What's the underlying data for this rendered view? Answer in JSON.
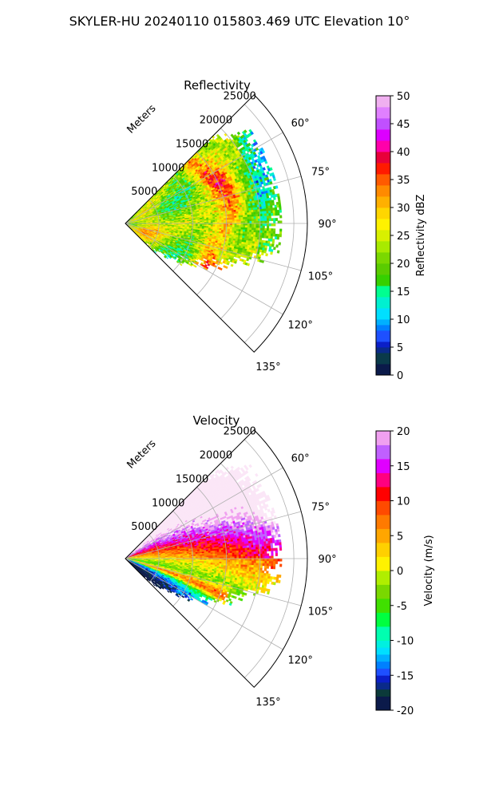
{
  "suptitle": "SKYLER-HU  20240110  015803.469 UTC Elevation 10°",
  "chart_data": [
    {
      "type": "heatmap",
      "projection": "polar-sector",
      "title": "Reflectivity",
      "radial_label": "Meters",
      "azimuth_range_deg": [
        45,
        135
      ],
      "radial_range_m": [
        0,
        27000
      ],
      "radial_ticks": [
        5000,
        10000,
        15000,
        20000,
        25000
      ],
      "azimuth_ticks": [
        "60°",
        "75°",
        "90°",
        "105°",
        "120°",
        "135°"
      ],
      "grid": true,
      "data_extent_m": 23000,
      "colorbar": {
        "label": "Reflectivity dBZ",
        "min": 0,
        "max": 50,
        "ticks": [
          0,
          5,
          10,
          15,
          20,
          25,
          30,
          35,
          40,
          45,
          50
        ],
        "levels": [
          {
            "v": 0,
            "c": "#0b1a4a"
          },
          {
            "v": 2,
            "c": "#0a3a4a"
          },
          {
            "v": 4,
            "c": "#0a2a8a"
          },
          {
            "v": 5,
            "c": "#0b1fc8"
          },
          {
            "v": 6,
            "c": "#1e50ff"
          },
          {
            "v": 8,
            "c": "#0080ff"
          },
          {
            "v": 9,
            "c": "#00b0ff"
          },
          {
            "v": 10,
            "c": "#00dfff"
          },
          {
            "v": 12,
            "c": "#00f0d0"
          },
          {
            "v": 14,
            "c": "#00ff90"
          },
          {
            "v": 16,
            "c": "#36d000"
          },
          {
            "v": 18,
            "c": "#5acc00"
          },
          {
            "v": 20,
            "c": "#7ad800"
          },
          {
            "v": 22,
            "c": "#a8ea00"
          },
          {
            "v": 24,
            "c": "#d8f000"
          },
          {
            "v": 26,
            "c": "#fff200"
          },
          {
            "v": 28,
            "c": "#ffd600"
          },
          {
            "v": 30,
            "c": "#ffb000"
          },
          {
            "v": 32,
            "c": "#ff8a00"
          },
          {
            "v": 34,
            "c": "#ff5a00"
          },
          {
            "v": 36,
            "c": "#ff1a00"
          },
          {
            "v": 38,
            "c": "#e8003a"
          },
          {
            "v": 40,
            "c": "#ff00aa"
          },
          {
            "v": 42,
            "c": "#dd00ff"
          },
          {
            "v": 44,
            "c": "#c050ff"
          },
          {
            "v": 46,
            "c": "#e080ff"
          },
          {
            "v": 48,
            "c": "#f0b0f0"
          },
          {
            "v": 50,
            "c": "#fbe6f7"
          }
        ]
      }
    },
    {
      "type": "heatmap",
      "projection": "polar-sector",
      "title": "Velocity",
      "radial_label": "Meters",
      "azimuth_range_deg": [
        45,
        135
      ],
      "radial_range_m": [
        0,
        27000
      ],
      "radial_ticks": [
        5000,
        10000,
        15000,
        20000,
        25000
      ],
      "azimuth_ticks": [
        "60°",
        "75°",
        "90°",
        "105°",
        "120°",
        "135°"
      ],
      "grid": true,
      "data_extent_m": 23000,
      "colorbar": {
        "label": "Velocity (m/s)",
        "min": -20,
        "max": 20,
        "ticks": [
          -20,
          -15,
          -10,
          -5,
          0,
          5,
          10,
          15,
          20
        ],
        "levels": [
          {
            "v": -20,
            "c": "#0b1a4a"
          },
          {
            "v": -18,
            "c": "#0b3a3a"
          },
          {
            "v": -17,
            "c": "#0a2a8a"
          },
          {
            "v": -16,
            "c": "#0b1fc8"
          },
          {
            "v": -15,
            "c": "#1e50ff"
          },
          {
            "v": -14,
            "c": "#0080ff"
          },
          {
            "v": -13,
            "c": "#00b0ff"
          },
          {
            "v": -12,
            "c": "#00dfff"
          },
          {
            "v": -11,
            "c": "#00f0e0"
          },
          {
            "v": -10,
            "c": "#00ffb0"
          },
          {
            "v": -8,
            "c": "#00ff40"
          },
          {
            "v": -6,
            "c": "#40e000"
          },
          {
            "v": -4,
            "c": "#7ad800"
          },
          {
            "v": -2,
            "c": "#b0ee00"
          },
          {
            "v": 0,
            "c": "#fff200"
          },
          {
            "v": 2,
            "c": "#ffd000"
          },
          {
            "v": 4,
            "c": "#ffa600"
          },
          {
            "v": 6,
            "c": "#ff7a00"
          },
          {
            "v": 8,
            "c": "#ff4a00"
          },
          {
            "v": 10,
            "c": "#ff0000"
          },
          {
            "v": 12,
            "c": "#ff0080"
          },
          {
            "v": 14,
            "c": "#e000ff"
          },
          {
            "v": 16,
            "c": "#c060ff"
          },
          {
            "v": 18,
            "c": "#f0a0f0"
          },
          {
            "v": 20,
            "c": "#fbe6f7"
          }
        ]
      }
    }
  ]
}
